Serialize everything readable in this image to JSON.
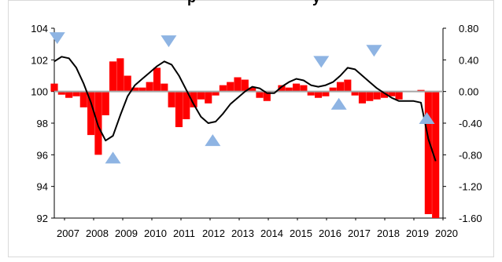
{
  "chart_data": {
    "type": "bar",
    "title": "",
    "title_partial": "p",
    "title_partial_tail": "y",
    "xlabel": "",
    "ylabel": "",
    "x_tick_labels": [
      "2007",
      "2008",
      "2009",
      "2010",
      "2011",
      "2012",
      "2013",
      "2014",
      "2015",
      "2016",
      "2017",
      "2018",
      "2019",
      "2020"
    ],
    "y_left": {
      "ticks": [
        "92",
        "94",
        "96",
        "98",
        "100",
        "102",
        "104"
      ],
      "range": [
        92,
        104
      ]
    },
    "y_right": {
      "ticks": [
        "-1.60",
        "-1.20",
        "-0.80",
        "-0.40",
        "0.00",
        "0.40",
        "0.80"
      ],
      "range": [
        -1.6,
        0.8
      ]
    },
    "grid": false,
    "bar_series": {
      "axis": "right",
      "color": "#ff0000",
      "x": [
        2007.0,
        2007.25,
        2007.5,
        2007.75,
        2008.0,
        2008.25,
        2008.5,
        2008.75,
        2009.0,
        2009.25,
        2009.5,
        2009.75,
        2010.0,
        2010.25,
        2010.5,
        2010.75,
        2011.0,
        2011.25,
        2011.5,
        2011.75,
        2012.0,
        2012.25,
        2012.5,
        2012.75,
        2013.0,
        2013.25,
        2013.5,
        2013.75,
        2014.0,
        2014.25,
        2014.5,
        2014.75,
        2015.0,
        2015.25,
        2015.5,
        2015.75,
        2016.0,
        2016.25,
        2016.5,
        2016.75,
        2017.0,
        2017.25,
        2017.5,
        2017.75,
        2018.0,
        2018.25,
        2018.5,
        2018.75,
        2019.0,
        2019.25,
        2019.5,
        2019.75,
        2020.0
      ],
      "values": [
        0.1,
        -0.04,
        -0.08,
        -0.06,
        -0.2,
        -0.55,
        -0.8,
        -0.3,
        0.38,
        0.42,
        0.2,
        0.05,
        0.05,
        0.12,
        0.3,
        0.1,
        -0.2,
        -0.45,
        -0.35,
        -0.2,
        -0.1,
        -0.15,
        -0.05,
        0.08,
        0.12,
        0.18,
        0.15,
        0.05,
        -0.08,
        -0.12,
        0.0,
        0.08,
        0.05,
        0.1,
        0.08,
        -0.05,
        -0.08,
        -0.06,
        0.05,
        0.12,
        0.15,
        -0.05,
        -0.15,
        -0.12,
        -0.1,
        -0.08,
        -0.06,
        -0.1,
        0.0,
        0.0,
        0.02,
        -1.55,
        -1.6
      ]
    },
    "line_series": {
      "axis": "left",
      "color": "#000000",
      "x": [
        2007.0,
        2007.25,
        2007.5,
        2007.75,
        2008.0,
        2008.25,
        2008.5,
        2008.75,
        2009.0,
        2009.25,
        2009.5,
        2009.75,
        2010.0,
        2010.25,
        2010.5,
        2010.75,
        2011.0,
        2011.25,
        2011.5,
        2011.75,
        2012.0,
        2012.25,
        2012.5,
        2012.75,
        2013.0,
        2013.25,
        2013.5,
        2013.75,
        2014.0,
        2014.25,
        2014.5,
        2014.75,
        2015.0,
        2015.25,
        2015.5,
        2015.75,
        2016.0,
        2016.25,
        2016.5,
        2016.75,
        2017.0,
        2017.25,
        2017.5,
        2017.75,
        2018.0,
        2018.25,
        2018.5,
        2018.75,
        2019.0,
        2019.25,
        2019.5,
        2019.75,
        2020.0
      ],
      "values": [
        101.9,
        102.2,
        102.1,
        101.5,
        100.5,
        99.3,
        97.8,
        96.9,
        97.2,
        98.5,
        99.7,
        100.4,
        100.8,
        101.2,
        101.6,
        101.9,
        101.7,
        101.0,
        100.1,
        99.2,
        98.4,
        98.0,
        98.1,
        98.6,
        99.2,
        99.6,
        100.0,
        100.3,
        100.2,
        99.9,
        99.9,
        100.3,
        100.6,
        100.8,
        100.7,
        100.4,
        100.3,
        100.4,
        100.6,
        101.0,
        101.5,
        101.4,
        101.0,
        100.6,
        100.2,
        99.9,
        99.6,
        99.4,
        99.4,
        99.4,
        99.3,
        97.0,
        95.6
      ]
    },
    "markers_down": {
      "color": "#8eb4e3",
      "x": [
        2007.1,
        2010.9,
        2016.1,
        2017.9
      ],
      "y": [
        103.4,
        103.2,
        101.9,
        102.6
      ]
    },
    "markers_up": {
      "color": "#8eb4e3",
      "x": [
        2009.0,
        2012.4,
        2016.7,
        2019.7
      ],
      "y": [
        95.8,
        96.9,
        99.2,
        98.3
      ]
    }
  }
}
